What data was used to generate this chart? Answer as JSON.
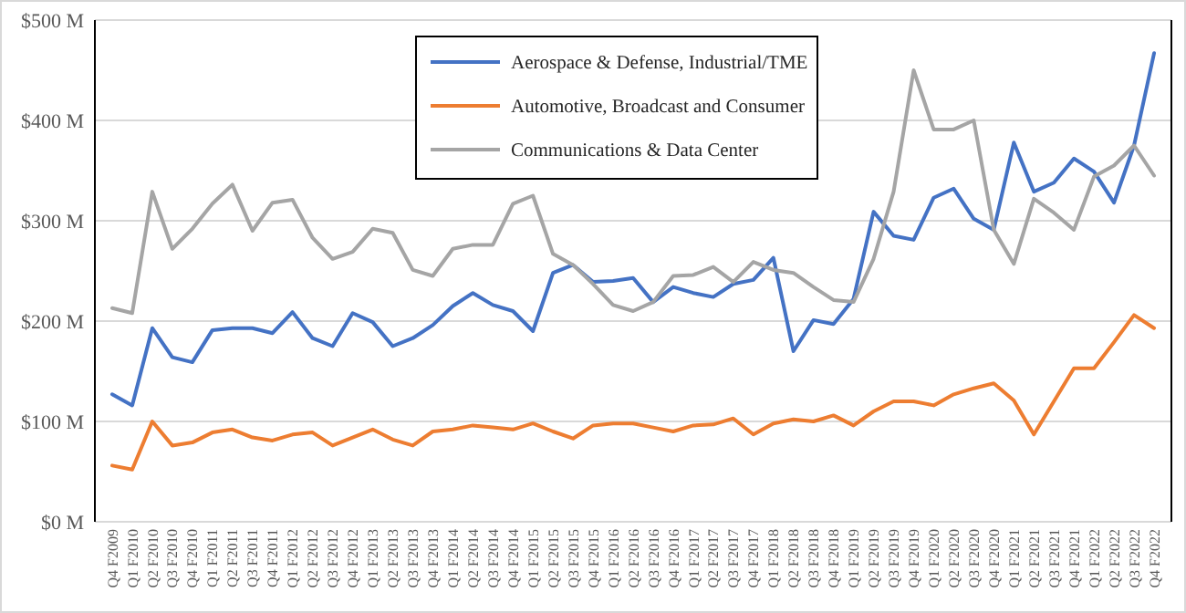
{
  "chart_data": {
    "type": "line",
    "categories": [
      "Q4 F2009",
      "Q1 F2010",
      "Q2 F2010",
      "Q3 F2010",
      "Q4 F2010",
      "Q1 F2011",
      "Q2 F2011",
      "Q3 F2011",
      "Q4 F2011",
      "Q1 F2012",
      "Q2 F2012",
      "Q3 F2012",
      "Q4 F2012",
      "Q1 F2013",
      "Q2 F2013",
      "Q3 F2013",
      "Q4 F2013",
      "Q1 F2014",
      "Q2 F2014",
      "Q3 F2014",
      "Q4 F2014",
      "Q1 F2015",
      "Q2 F2015",
      "Q3 F2015",
      "Q4 F2015",
      "Q1 F2016",
      "Q2 F2016",
      "Q3 F2016",
      "Q4 F2016",
      "Q1 F2017",
      "Q2 F2017",
      "Q3 F2017",
      "Q4 F2017",
      "Q1 F2018",
      "Q2 F2018",
      "Q3 F2018",
      "Q4 F2018",
      "Q1 F2019",
      "Q2 F2019",
      "Q3 F2019",
      "Q4 F2019",
      "Q1 F2020",
      "Q2 F2020",
      "Q3 F2020",
      "Q4 F2020",
      "Q1 F2021",
      "Q2 F2021",
      "Q3 F2021",
      "Q4 F2021",
      "Q1 F2022",
      "Q2 F2022",
      "Q3 F2022",
      "Q4 F2022"
    ],
    "series": [
      {
        "name": "Aerospace & Defense, Industrial/TME",
        "color": "#4472c4",
        "values": [
          127,
          116,
          193,
          164,
          159,
          191,
          193,
          193,
          188,
          209,
          183,
          175,
          208,
          199,
          175,
          183,
          196,
          215,
          228,
          216,
          210,
          190,
          248,
          256,
          239,
          240,
          243,
          219,
          234,
          228,
          224,
          237,
          241,
          263,
          170,
          201,
          197,
          222,
          309,
          285,
          281,
          323,
          332,
          302,
          291,
          378,
          329,
          338,
          362,
          349,
          318,
          375,
          467
        ]
      },
      {
        "name": "Automotive, Broadcast and Consumer",
        "color": "#ed7d31",
        "values": [
          56,
          52,
          100,
          76,
          79,
          89,
          92,
          84,
          81,
          87,
          89,
          76,
          84,
          92,
          82,
          76,
          90,
          92,
          96,
          94,
          92,
          98,
          90,
          83,
          96,
          98,
          98,
          94,
          90,
          96,
          97,
          103,
          87,
          98,
          102,
          100,
          106,
          96,
          110,
          120,
          120,
          116,
          127,
          133,
          138,
          121,
          87,
          120,
          153,
          153,
          179,
          206,
          193
        ]
      },
      {
        "name": "Communications & Data Center",
        "color": "#a5a5a5",
        "values": [
          213,
          208,
          329,
          272,
          292,
          317,
          336,
          290,
          318,
          321,
          283,
          262,
          269,
          292,
          288,
          251,
          245,
          272,
          276,
          276,
          317,
          325,
          267,
          256,
          237,
          216,
          210,
          219,
          245,
          246,
          254,
          239,
          259,
          251,
          248,
          234,
          221,
          219,
          262,
          329,
          450,
          391,
          391,
          400,
          291,
          257,
          322,
          308,
          291,
          344,
          355,
          375,
          345
        ]
      }
    ],
    "ylim": [
      0,
      500
    ],
    "yticks": [
      {
        "value": 0,
        "label": "$0 M"
      },
      {
        "value": 100,
        "label": "$100 M"
      },
      {
        "value": 200,
        "label": "$200 M"
      },
      {
        "value": 300,
        "label": "$300 M"
      },
      {
        "value": 400,
        "label": "$400 M"
      },
      {
        "value": 500,
        "label": "$500 M"
      }
    ],
    "grid": "y",
    "legend": "top",
    "marker": "none",
    "line_style": "solid"
  }
}
